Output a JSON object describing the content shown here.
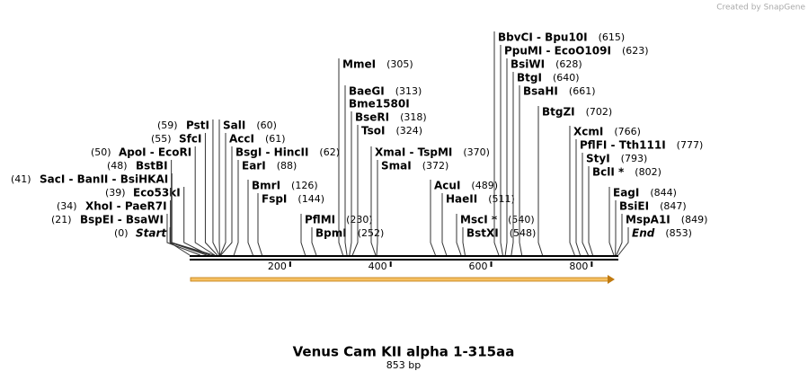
{
  "watermark": "Created by SnapGene",
  "title": "Venus Cam KII alpha 1-315aa",
  "subtitle": "853 bp",
  "ruler": {
    "ticks": [
      200,
      400,
      600,
      800
    ]
  },
  "enzymes": [
    {
      "name": "Start",
      "italic": true,
      "position": 0,
      "position_label": "(0)"
    },
    {
      "name": "BspEI  - BsaWI",
      "position": 21,
      "position_label": "(21)"
    },
    {
      "name": "XhoI  - PaeR7I",
      "position": 34,
      "position_label": "(34)"
    },
    {
      "name": "Eco53kI",
      "position": 39,
      "position_label": "(39)"
    },
    {
      "name": "SacI  - BanII  - BsiHKAI",
      "position": 41,
      "position_label": "(41)"
    },
    {
      "name": "BstBI",
      "position": 48,
      "position_label": "(48)"
    },
    {
      "name": "ApoI  - EcoRI",
      "position": 50,
      "position_label": "(50)"
    },
    {
      "name": "SfcI",
      "position": 55,
      "position_label": "(55)"
    },
    {
      "name": "PstI",
      "position": 59,
      "position_label": "(59)"
    },
    {
      "name": "SalI",
      "position": 60,
      "position_label": "(60)"
    },
    {
      "name": "AccI",
      "position": 61,
      "position_label": "(61)"
    },
    {
      "name": "BsgI  - HincII",
      "position": 62,
      "position_label": "(62)"
    },
    {
      "name": "EarI",
      "position": 88,
      "position_label": "(88)"
    },
    {
      "name": "BmrI",
      "position": 126,
      "position_label": "(126)"
    },
    {
      "name": "FspI",
      "position": 144,
      "position_label": "(144)"
    },
    {
      "name": "PflMI",
      "position": 230,
      "position_label": "(230)"
    },
    {
      "name": "BpmI",
      "position": 252,
      "position_label": "(252)"
    },
    {
      "name": "MmeI",
      "position": 305,
      "position_label": "(305)"
    },
    {
      "name": "BaeGI",
      "position": 313,
      "position_label": "(313)"
    },
    {
      "name": "Bme1580I"
    },
    {
      "name": "BseRI",
      "position": 318,
      "position_label": "(318)"
    },
    {
      "name": "TsoI",
      "position": 324,
      "position_label": "(324)"
    },
    {
      "name": "XmaI  - TspMI",
      "position": 370,
      "position_label": "(370)"
    },
    {
      "name": "SmaI",
      "position": 372,
      "position_label": "(372)"
    },
    {
      "name": "AcuI",
      "position": 489,
      "position_label": "(489)"
    },
    {
      "name": "HaeII",
      "position": 511,
      "position_label": "(511)"
    },
    {
      "name": "MscI *",
      "position": 540,
      "position_label": "(540)"
    },
    {
      "name": "BstXI",
      "position": 548,
      "position_label": "(548)"
    },
    {
      "name": "BbvCI  - Bpu10I",
      "position": 615,
      "position_label": "(615)"
    },
    {
      "name": "PpuMI  - EcoO109I",
      "position": 623,
      "position_label": "(623)"
    },
    {
      "name": "BsiWI",
      "position": 628,
      "position_label": "(628)"
    },
    {
      "name": "BtgI",
      "position": 640,
      "position_label": "(640)"
    },
    {
      "name": "BsaHI",
      "position": 661,
      "position_label": "(661)"
    },
    {
      "name": "BtgZI",
      "position": 702,
      "position_label": "(702)"
    },
    {
      "name": "XcmI",
      "position": 766,
      "position_label": "(766)"
    },
    {
      "name": "PflFI  - Tth111I",
      "position": 777,
      "position_label": "(777)"
    },
    {
      "name": "StyI",
      "position": 793,
      "position_label": "(793)"
    },
    {
      "name": "BclI *",
      "position": 802,
      "position_label": "(802)"
    },
    {
      "name": "EagI",
      "position": 844,
      "position_label": "(844)"
    },
    {
      "name": "BsiEI",
      "position": 847,
      "position_label": "(847)"
    },
    {
      "name": "MspA1I",
      "position": 849,
      "position_label": "(849)"
    },
    {
      "name": "End",
      "italic": true,
      "position": 853,
      "position_label": "(853)"
    }
  ]
}
